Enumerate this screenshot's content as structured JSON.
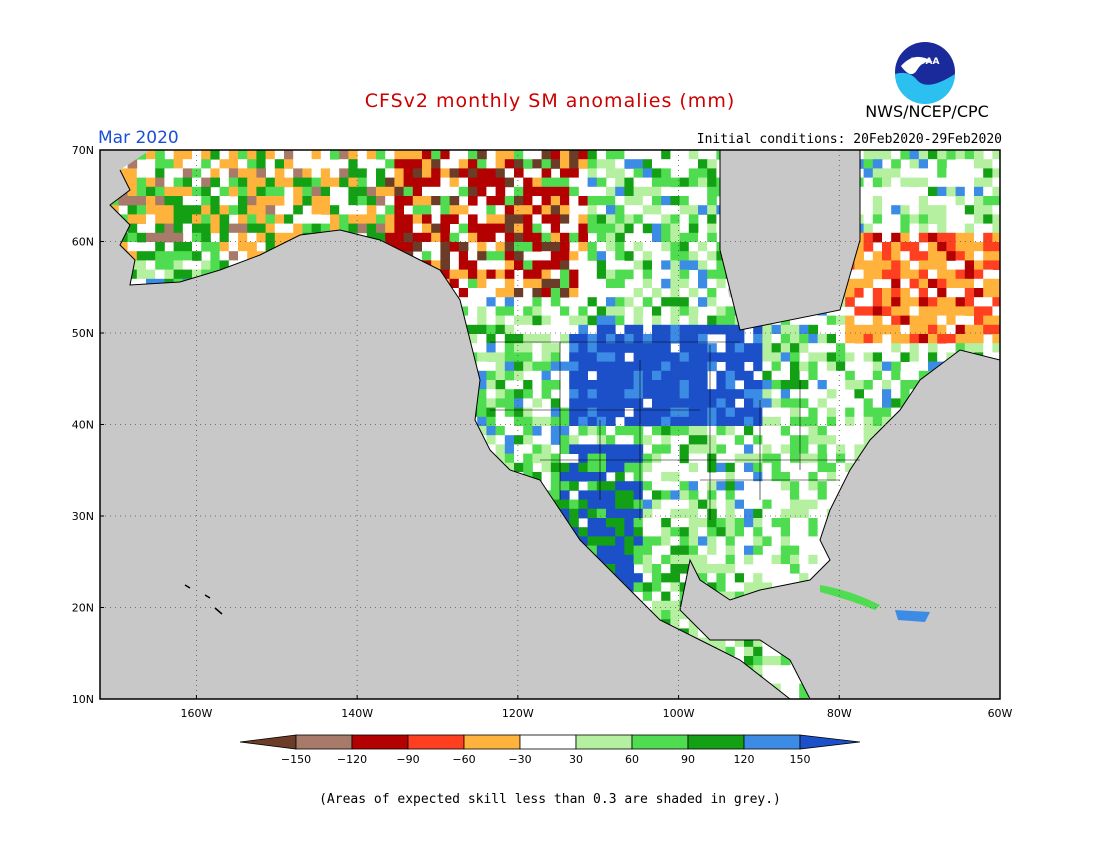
{
  "header": {
    "title": "CFSv2 monthly SM anomalies (mm)",
    "agency": "NWS/NCEP/CPC",
    "logo_text": "NOAA",
    "month": "Mar 2020",
    "initial_conditions": "Initial conditions: 20Feb2020-29Feb2020"
  },
  "colors": {
    "title": "#cc0000",
    "month": "#1a4fd6",
    "ocean": "#c8c8c8",
    "land_white": "#ffffff"
  },
  "axes": {
    "lat_ticks": [
      "70N",
      "60N",
      "50N",
      "40N",
      "30N",
      "20N",
      "10N"
    ],
    "lon_ticks": [
      "160W",
      "140W",
      "120W",
      "100W",
      "80W",
      "60W"
    ],
    "lat_values": [
      70,
      60,
      50,
      40,
      30,
      20,
      10
    ],
    "lon_values": [
      -160,
      -140,
      -120,
      -100,
      -80,
      -60
    ],
    "lon_range": [
      -172,
      -60
    ],
    "lat_range": [
      10,
      70
    ],
    "grid": "dotted"
  },
  "legend": {
    "boundaries": [
      "−150",
      "−120",
      "−90",
      "−60",
      "−30",
      "30",
      "60",
      "90",
      "120",
      "150"
    ],
    "colors": [
      "#6b3d28",
      "#a87a6a",
      "#b30000",
      "#ff4020",
      "#ffb23c",
      "#ffffff",
      "#b4f0a0",
      "#50dc50",
      "#14a014",
      "#3c8ce6",
      "#1c50c8"
    ],
    "note": "(Areas of expected skill less than 0.3 are shaded in grey.)"
  }
}
